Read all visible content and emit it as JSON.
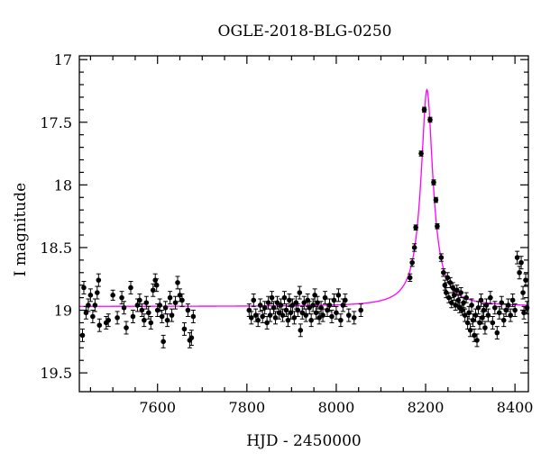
{
  "chart_data": {
    "type": "scatter",
    "title": "OGLE-2018-BLG-0250",
    "xlabel": "HJD - 2450000",
    "ylabel": "I magnitude",
    "xlim": [
      7425,
      8430
    ],
    "ylim": [
      19.65,
      16.97
    ],
    "y_inverted": true,
    "xticks": [
      7600,
      7800,
      8000,
      8200,
      8400
    ],
    "yticks": [
      17,
      17.5,
      18,
      18.5,
      19,
      19.5
    ],
    "xtick_labels": [
      "7600",
      "7800",
      "8000",
      "8200",
      "8400"
    ],
    "ytick_labels": [
      "17",
      "17.5",
      "18",
      "18.5",
      "19",
      "19.5"
    ],
    "grid": false,
    "legend": "none",
    "colors": {
      "data": "#000000",
      "model": "#ff00ff"
    },
    "series": [
      {
        "kind": "photometry",
        "color": "#000000",
        "points": [
          [
            7432,
            19.2,
            0.05
          ],
          [
            7435,
            18.82,
            0.05
          ],
          [
            7440,
            19.02,
            0.05
          ],
          [
            7445,
            18.96,
            0.05
          ],
          [
            7450,
            18.88,
            0.05
          ],
          [
            7455,
            19.05,
            0.05
          ],
          [
            7460,
            18.96,
            0.05
          ],
          [
            7465,
            18.86,
            0.05
          ],
          [
            7468,
            18.76,
            0.05
          ],
          [
            7470,
            19.12,
            0.05
          ],
          [
            7485,
            19.1,
            0.05
          ],
          [
            7490,
            19.08,
            0.05
          ],
          [
            7500,
            18.88,
            0.04
          ],
          [
            7510,
            19.06,
            0.05
          ],
          [
            7520,
            18.9,
            0.05
          ],
          [
            7525,
            18.98,
            0.05
          ],
          [
            7530,
            19.14,
            0.05
          ],
          [
            7540,
            18.82,
            0.05
          ],
          [
            7545,
            19.05,
            0.05
          ],
          [
            7555,
            18.96,
            0.05
          ],
          [
            7560,
            18.92,
            0.05
          ],
          [
            7565,
            19.0,
            0.05
          ],
          [
            7570,
            19.08,
            0.05
          ],
          [
            7575,
            18.94,
            0.05
          ],
          [
            7580,
            19.02,
            0.05
          ],
          [
            7585,
            19.1,
            0.05
          ],
          [
            7590,
            18.84,
            0.05
          ],
          [
            7595,
            18.76,
            0.05
          ],
          [
            7598,
            18.8,
            0.05
          ],
          [
            7600,
            19.0,
            0.05
          ],
          [
            7605,
            18.96,
            0.05
          ],
          [
            7610,
            19.05,
            0.05
          ],
          [
            7613,
            19.25,
            0.05
          ],
          [
            7618,
            18.98,
            0.05
          ],
          [
            7622,
            19.08,
            0.05
          ],
          [
            7628,
            18.9,
            0.05
          ],
          [
            7632,
            19.04,
            0.05
          ],
          [
            7640,
            18.94,
            0.05
          ],
          [
            7645,
            18.78,
            0.05
          ],
          [
            7650,
            18.88,
            0.05
          ],
          [
            7655,
            18.92,
            0.05
          ],
          [
            7660,
            19.15,
            0.05
          ],
          [
            7668,
            19.0,
            0.05
          ],
          [
            7672,
            19.24,
            0.06
          ],
          [
            7676,
            19.22,
            0.06
          ],
          [
            7680,
            19.05,
            0.05
          ],
          [
            7805,
            19.0,
            0.05
          ],
          [
            7810,
            19.06,
            0.05
          ],
          [
            7815,
            18.92,
            0.05
          ],
          [
            7820,
            19.04,
            0.05
          ],
          [
            7825,
            19.08,
            0.05
          ],
          [
            7830,
            18.96,
            0.05
          ],
          [
            7835,
            19.05,
            0.05
          ],
          [
            7840,
            18.98,
            0.05
          ],
          [
            7845,
            19.1,
            0.05
          ],
          [
            7848,
            18.94,
            0.05
          ],
          [
            7852,
            19.04,
            0.05
          ],
          [
            7856,
            18.9,
            0.05
          ],
          [
            7860,
            18.98,
            0.05
          ],
          [
            7864,
            19.06,
            0.05
          ],
          [
            7868,
            18.94,
            0.05
          ],
          [
            7872,
            19.02,
            0.05
          ],
          [
            7876,
            18.96,
            0.05
          ],
          [
            7880,
            19.04,
            0.05
          ],
          [
            7884,
            18.9,
            0.05
          ],
          [
            7888,
            19.0,
            0.05
          ],
          [
            7892,
            19.08,
            0.05
          ],
          [
            7895,
            18.92,
            0.05
          ],
          [
            7898,
            19.02,
            0.05
          ],
          [
            7902,
            18.96,
            0.05
          ],
          [
            7906,
            19.06,
            0.05
          ],
          [
            7910,
            18.94,
            0.05
          ],
          [
            7914,
            19.0,
            0.05
          ],
          [
            7918,
            18.86,
            0.05
          ],
          [
            7920,
            19.16,
            0.05
          ],
          [
            7924,
            19.02,
            0.05
          ],
          [
            7928,
            18.94,
            0.05
          ],
          [
            7932,
            19.04,
            0.05
          ],
          [
            7936,
            18.92,
            0.05
          ],
          [
            7940,
            18.98,
            0.05
          ],
          [
            7944,
            19.08,
            0.05
          ],
          [
            7948,
            18.96,
            0.05
          ],
          [
            7952,
            18.88,
            0.05
          ],
          [
            7955,
            19.02,
            0.05
          ],
          [
            7958,
            18.94,
            0.05
          ],
          [
            7962,
            19.06,
            0.05
          ],
          [
            7966,
            18.98,
            0.05
          ],
          [
            7970,
            19.04,
            0.05
          ],
          [
            7975,
            18.9,
            0.05
          ],
          [
            7980,
            19.0,
            0.05
          ],
          [
            7985,
            18.96,
            0.05
          ],
          [
            7990,
            19.05,
            0.05
          ],
          [
            7995,
            18.92,
            0.05
          ],
          [
            8000,
            19.02,
            0.05
          ],
          [
            8005,
            18.88,
            0.05
          ],
          [
            8010,
            19.08,
            0.05
          ],
          [
            8015,
            18.96,
            0.05
          ],
          [
            8020,
            18.92,
            0.05
          ],
          [
            8028,
            19.04,
            0.05
          ],
          [
            8040,
            19.06,
            0.05
          ],
          [
            8055,
            19.0,
            0.05
          ],
          [
            8165,
            18.74,
            0.03
          ],
          [
            8170,
            18.62,
            0.03
          ],
          [
            8175,
            18.5,
            0.03
          ],
          [
            8178,
            18.34,
            0.02
          ],
          [
            8190,
            17.75,
            0.02
          ],
          [
            8197,
            17.4,
            0.02
          ],
          [
            8210,
            17.48,
            0.02
          ],
          [
            8218,
            17.98,
            0.02
          ],
          [
            8223,
            18.12,
            0.02
          ],
          [
            8226,
            18.33,
            0.02
          ],
          [
            8235,
            18.58,
            0.03
          ],
          [
            8240,
            18.7,
            0.03
          ],
          [
            8243,
            18.8,
            0.04
          ],
          [
            8246,
            18.86,
            0.04
          ],
          [
            8249,
            18.74,
            0.04
          ],
          [
            8252,
            18.9,
            0.04
          ],
          [
            8255,
            18.78,
            0.04
          ],
          [
            8258,
            18.94,
            0.04
          ],
          [
            8261,
            18.82,
            0.04
          ],
          [
            8264,
            18.88,
            0.04
          ],
          [
            8267,
            18.96,
            0.04
          ],
          [
            8270,
            18.84,
            0.04
          ],
          [
            8273,
            18.92,
            0.04
          ],
          [
            8276,
            18.98,
            0.04
          ],
          [
            8279,
            18.86,
            0.04
          ],
          [
            8282,
            19.0,
            0.04
          ],
          [
            8285,
            18.94,
            0.04
          ],
          [
            8288,
            19.04,
            0.05
          ],
          [
            8291,
            18.9,
            0.04
          ],
          [
            8294,
            19.1,
            0.05
          ],
          [
            8297,
            19.02,
            0.05
          ],
          [
            8300,
            19.16,
            0.05
          ],
          [
            8303,
            18.96,
            0.05
          ],
          [
            8306,
            19.08,
            0.05
          ],
          [
            8309,
            19.2,
            0.05
          ],
          [
            8312,
            19.04,
            0.05
          ],
          [
            8315,
            19.24,
            0.05
          ],
          [
            8318,
            18.98,
            0.05
          ],
          [
            8321,
            19.1,
            0.05
          ],
          [
            8324,
            18.92,
            0.05
          ],
          [
            8327,
            19.06,
            0.05
          ],
          [
            8330,
            19.0,
            0.05
          ],
          [
            8333,
            19.14,
            0.05
          ],
          [
            8336,
            18.96,
            0.05
          ],
          [
            8340,
            19.04,
            0.05
          ],
          [
            8345,
            18.9,
            0.05
          ],
          [
            8350,
            19.1,
            0.05
          ],
          [
            8355,
            18.98,
            0.05
          ],
          [
            8360,
            19.18,
            0.05
          ],
          [
            8365,
            19.02,
            0.05
          ],
          [
            8370,
            18.94,
            0.05
          ],
          [
            8375,
            19.08,
            0.05
          ],
          [
            8380,
            19.0,
            0.05
          ],
          [
            8385,
            18.96,
            0.05
          ],
          [
            8390,
            19.04,
            0.05
          ],
          [
            8395,
            18.92,
            0.05
          ],
          [
            8400,
            19.0,
            0.05
          ],
          [
            8405,
            18.58,
            0.05
          ],
          [
            8410,
            18.7,
            0.05
          ],
          [
            8414,
            18.62,
            0.05
          ],
          [
            8418,
            18.86,
            0.05
          ],
          [
            8420,
            19.02,
            0.05
          ],
          [
            8424,
            18.76,
            0.05
          ],
          [
            8427,
            18.98,
            0.05
          ]
        ]
      },
      {
        "kind": "model",
        "color": "#ff00ff",
        "baseline": 18.97,
        "peak_time": 8203,
        "peak_mag": 17.24,
        "half_width": 11
      }
    ]
  }
}
